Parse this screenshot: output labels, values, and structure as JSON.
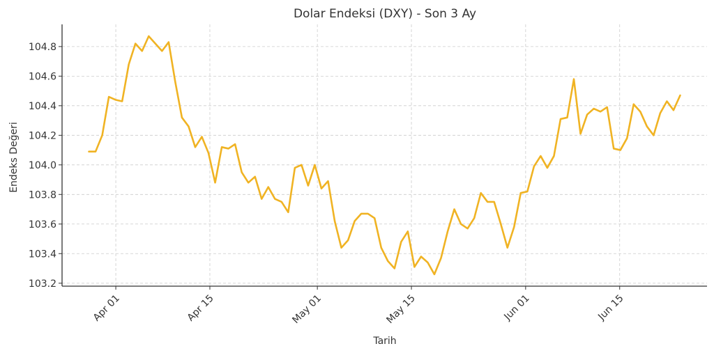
{
  "chart_data": {
    "type": "line",
    "title": "Dolar Endeksi (DXY) - Son 3 Ay",
    "xlabel": "Tarih",
    "ylabel": "Endeks Değeri",
    "x_start": "2024-03-28",
    "x_end": "2024-06-24",
    "x_range": [
      "2024-03-24",
      "2024-06-28"
    ],
    "ylim": [
      103.18,
      104.95
    ],
    "x_ticks": [
      {
        "label": "Apr 01",
        "date": "2024-04-01"
      },
      {
        "label": "Apr 15",
        "date": "2024-04-15"
      },
      {
        "label": "May 01",
        "date": "2024-05-01"
      },
      {
        "label": "May 15",
        "date": "2024-05-15"
      },
      {
        "label": "Jun 01",
        "date": "2024-06-01"
      },
      {
        "label": "Jun 15",
        "date": "2024-06-15"
      }
    ],
    "y_ticks": [
      "103.2",
      "103.4",
      "103.6",
      "103.8",
      "104.0",
      "104.2",
      "104.4",
      "104.6",
      "104.8"
    ],
    "grid": true,
    "color": "#f0b323",
    "series": [
      {
        "name": "DXY",
        "values": [
          104.09,
          104.09,
          104.2,
          104.46,
          104.44,
          104.43,
          104.68,
          104.82,
          104.77,
          104.87,
          104.82,
          104.77,
          104.83,
          104.56,
          104.32,
          104.26,
          104.12,
          104.19,
          104.08,
          103.88,
          104.12,
          104.11,
          104.14,
          103.95,
          103.88,
          103.92,
          103.77,
          103.85,
          103.77,
          103.75,
          103.68,
          103.98,
          104.0,
          103.86,
          104.0,
          103.84,
          103.89,
          103.62,
          103.44,
          103.49,
          103.62,
          103.67,
          103.67,
          103.64,
          103.44,
          103.35,
          103.3,
          103.48,
          103.55,
          103.31,
          103.38,
          103.34,
          103.26,
          103.37,
          103.55,
          103.7,
          103.6,
          103.57,
          103.64,
          103.81,
          103.75,
          103.75,
          103.6,
          103.44,
          103.58,
          103.81,
          103.82,
          103.99,
          104.06,
          103.98,
          104.06,
          104.31,
          104.32,
          104.58,
          104.21,
          104.34,
          104.38,
          104.36,
          104.39,
          104.11,
          104.1,
          104.18,
          104.41,
          104.36,
          104.26,
          104.2,
          104.35,
          104.43,
          104.37,
          104.47
        ]
      }
    ]
  }
}
